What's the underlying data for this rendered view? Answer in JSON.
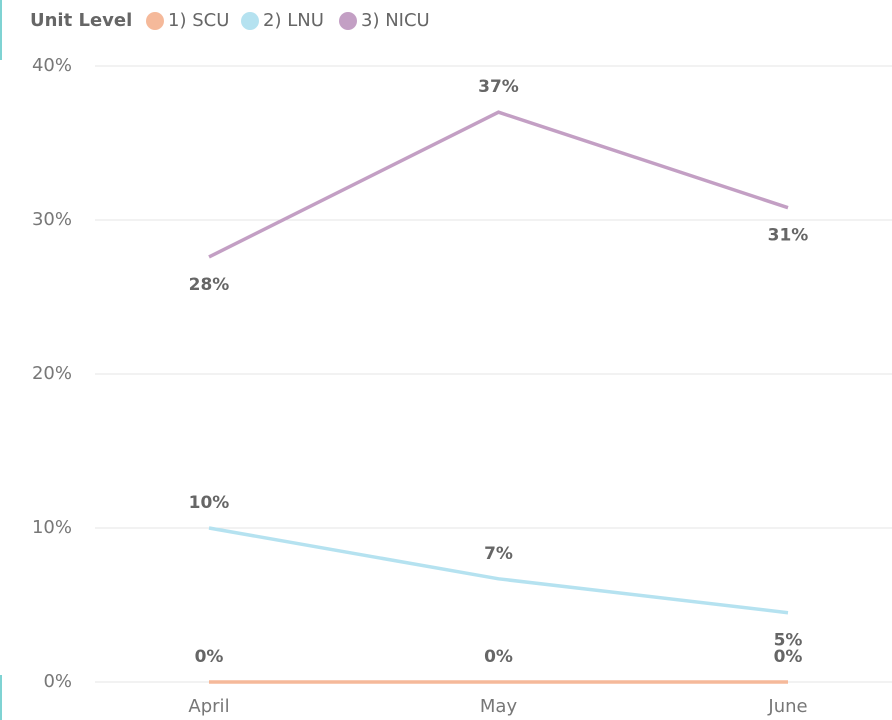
{
  "chart_data": {
    "type": "line",
    "legend_title": "Unit Level",
    "categories": [
      "April",
      "May",
      "June"
    ],
    "series": [
      {
        "name": "1) SCU",
        "color": "#f5b99a",
        "values": [
          0,
          0,
          0
        ],
        "value_labels": [
          "0%",
          "0%",
          "0%"
        ]
      },
      {
        "name": "2) LNU",
        "color": "#b5e2f0",
        "values": [
          10.0,
          6.7,
          4.5
        ],
        "value_labels": [
          "10%",
          "7%",
          "5%"
        ]
      },
      {
        "name": "3) NICU",
        "color": "#c39fc4",
        "values": [
          27.6,
          37.0,
          30.8
        ],
        "value_labels": [
          "28%",
          "37%",
          "31%"
        ]
      }
    ],
    "ylim": [
      0,
      40
    ],
    "yticks": [
      {
        "value": 0,
        "label": "0%"
      },
      {
        "value": 10,
        "label": "10%"
      },
      {
        "value": 20,
        "label": "20%"
      },
      {
        "value": 30,
        "label": "30%"
      },
      {
        "value": 40,
        "label": "40%"
      }
    ],
    "grid": true,
    "legend": "top-left"
  }
}
